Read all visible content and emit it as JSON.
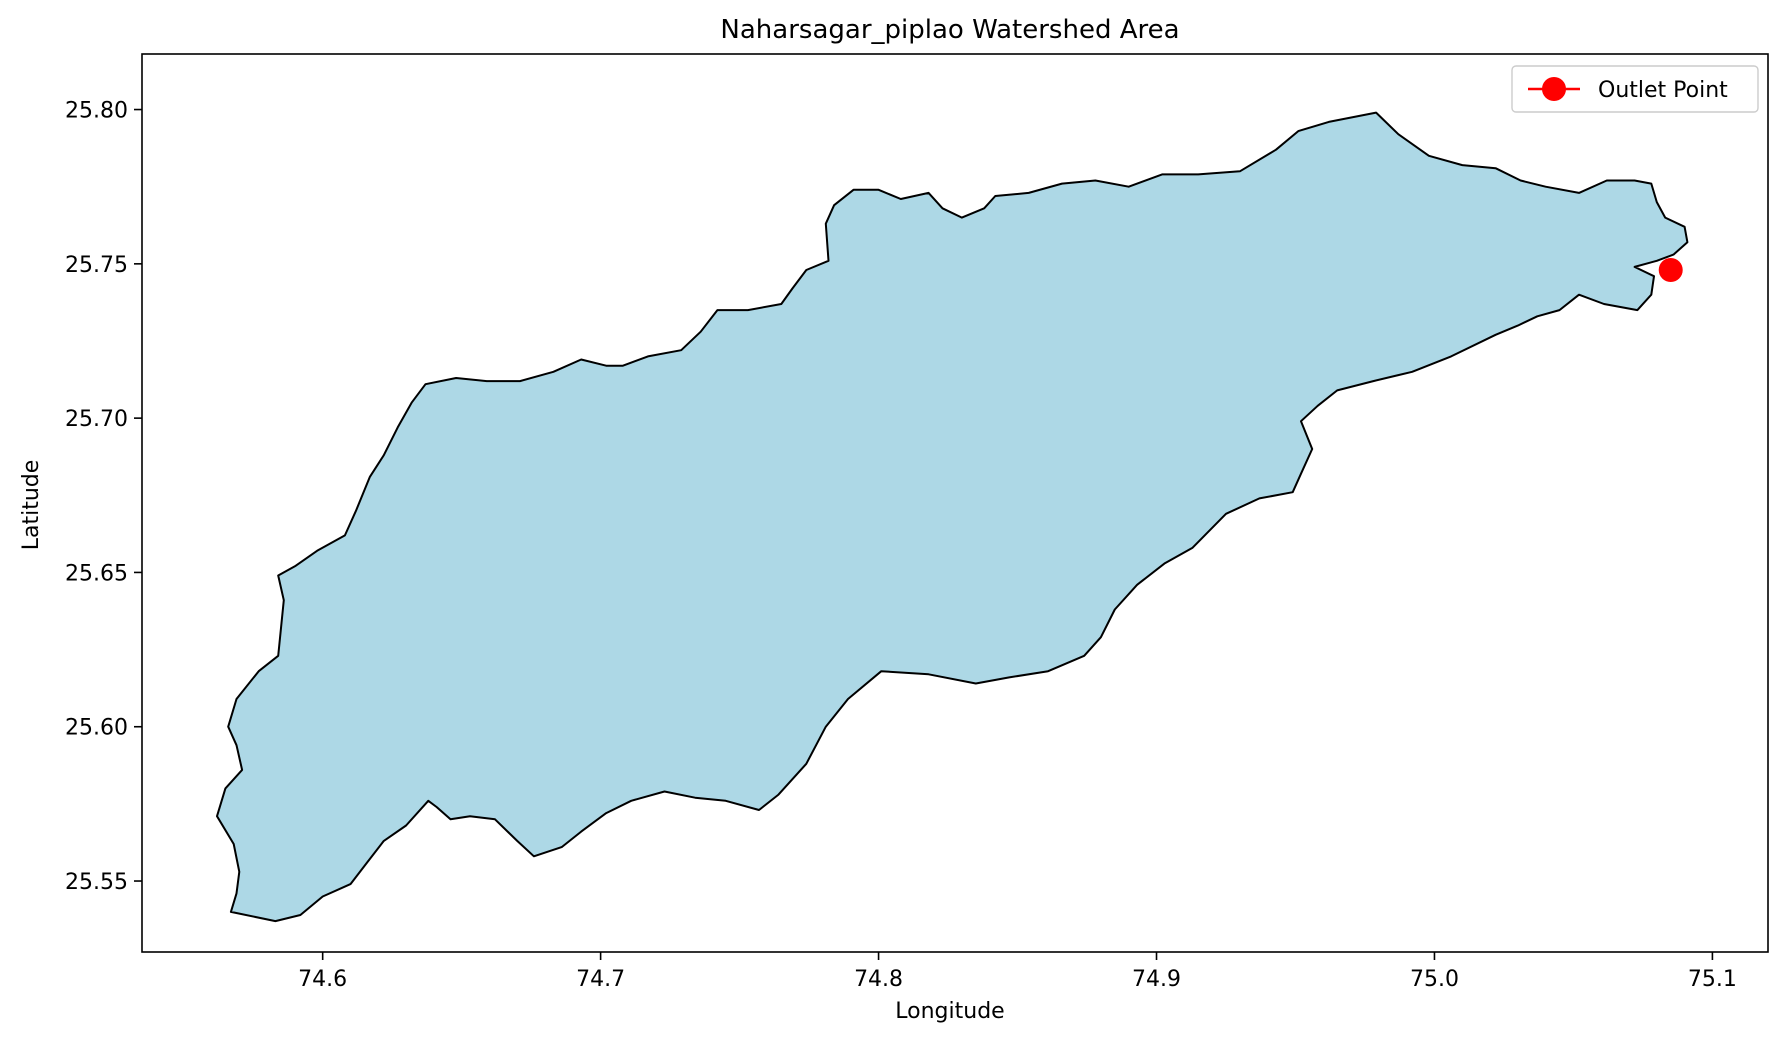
{
  "chart_data": {
    "type": "map",
    "title": "Naharsagar_piplao Watershed Area",
    "xlabel": "Longitude",
    "ylabel": "Latitude",
    "xlim": [
      74.535,
      75.12
    ],
    "ylim": [
      25.527,
      25.818
    ],
    "xticks": [
      "74.6",
      "74.7",
      "74.8",
      "74.9",
      "75.0",
      "75.1"
    ],
    "xtick_values": [
      74.6,
      74.7,
      74.8,
      74.9,
      75.0,
      75.1
    ],
    "yticks": [
      "25.55",
      "25.60",
      "25.65",
      "25.70",
      "25.75",
      "25.80"
    ],
    "ytick_values": [
      25.55,
      25.6,
      25.65,
      25.7,
      25.75,
      25.8
    ],
    "grid": false,
    "legend_position": "top-right",
    "legend": [
      {
        "label": "Outlet Point",
        "color": "#ff0000",
        "marker": "circle-line"
      }
    ],
    "watershed": {
      "fill_color": "#add8e6",
      "edge_color": "#000000",
      "boundary": [
        [
          74.567,
          25.54
        ],
        [
          74.583,
          25.537
        ],
        [
          74.592,
          25.539
        ],
        [
          74.6,
          25.545
        ],
        [
          74.61,
          25.549
        ],
        [
          74.616,
          25.556
        ],
        [
          74.622,
          25.563
        ],
        [
          74.63,
          25.568
        ],
        [
          74.638,
          25.576
        ],
        [
          74.641,
          25.574
        ],
        [
          74.646,
          25.57
        ],
        [
          74.653,
          25.571
        ],
        [
          74.662,
          25.57
        ],
        [
          74.67,
          25.563
        ],
        [
          74.676,
          25.558
        ],
        [
          74.686,
          25.561
        ],
        [
          74.693,
          25.566
        ],
        [
          74.702,
          25.572
        ],
        [
          74.711,
          25.576
        ],
        [
          74.723,
          25.579
        ],
        [
          74.734,
          25.577
        ],
        [
          74.745,
          25.576
        ],
        [
          74.757,
          25.573
        ],
        [
          74.764,
          25.578
        ],
        [
          74.774,
          25.588
        ],
        [
          74.781,
          25.6
        ],
        [
          74.789,
          25.609
        ],
        [
          74.801,
          25.618
        ],
        [
          74.818,
          25.617
        ],
        [
          74.835,
          25.614
        ],
        [
          74.847,
          25.616
        ],
        [
          74.861,
          25.618
        ],
        [
          74.874,
          25.623
        ],
        [
          74.88,
          25.629
        ],
        [
          74.885,
          25.638
        ],
        [
          74.893,
          25.646
        ],
        [
          74.903,
          25.653
        ],
        [
          74.913,
          25.658
        ],
        [
          74.925,
          25.669
        ],
        [
          74.937,
          25.674
        ],
        [
          74.949,
          25.676
        ],
        [
          74.952,
          25.682
        ],
        [
          74.956,
          25.69
        ],
        [
          74.952,
          25.699
        ],
        [
          74.958,
          25.704
        ],
        [
          74.965,
          25.709
        ],
        [
          74.978,
          25.712
        ],
        [
          74.992,
          25.715
        ],
        [
          75.006,
          25.72
        ],
        [
          75.022,
          25.727
        ],
        [
          75.03,
          25.73
        ],
        [
          75.037,
          25.733
        ],
        [
          75.045,
          25.735
        ],
        [
          75.052,
          25.74
        ],
        [
          75.061,
          25.737
        ],
        [
          75.073,
          25.735
        ],
        [
          75.078,
          25.74
        ],
        [
          75.079,
          25.746
        ],
        [
          75.072,
          25.749
        ],
        [
          75.08,
          25.751
        ],
        [
          75.086,
          25.753
        ],
        [
          75.091,
          25.757
        ],
        [
          75.09,
          25.762
        ],
        [
          75.083,
          25.765
        ],
        [
          75.08,
          25.77
        ],
        [
          75.078,
          25.776
        ],
        [
          75.072,
          25.777
        ],
        [
          75.062,
          25.777
        ],
        [
          75.052,
          25.773
        ],
        [
          75.04,
          25.775
        ],
        [
          75.031,
          25.777
        ],
        [
          75.022,
          25.781
        ],
        [
          75.01,
          25.782
        ],
        [
          74.998,
          25.785
        ],
        [
          74.987,
          25.792
        ],
        [
          74.979,
          25.799
        ],
        [
          74.962,
          25.796
        ],
        [
          74.951,
          25.793
        ],
        [
          74.943,
          25.787
        ],
        [
          74.93,
          25.78
        ],
        [
          74.915,
          25.779
        ],
        [
          74.902,
          25.779
        ],
        [
          74.89,
          25.775
        ],
        [
          74.878,
          25.777
        ],
        [
          74.866,
          25.776
        ],
        [
          74.854,
          25.773
        ],
        [
          74.842,
          25.772
        ],
        [
          74.838,
          25.768
        ],
        [
          74.83,
          25.765
        ],
        [
          74.823,
          25.768
        ],
        [
          74.818,
          25.773
        ],
        [
          74.808,
          25.771
        ],
        [
          74.8,
          25.774
        ],
        [
          74.791,
          25.774
        ],
        [
          74.784,
          25.769
        ],
        [
          74.781,
          25.763
        ],
        [
          74.782,
          25.751
        ],
        [
          74.774,
          25.748
        ],
        [
          74.769,
          25.742
        ],
        [
          74.765,
          25.737
        ],
        [
          74.753,
          25.735
        ],
        [
          74.742,
          25.735
        ],
        [
          74.736,
          25.728
        ],
        [
          74.729,
          25.722
        ],
        [
          74.717,
          25.72
        ],
        [
          74.708,
          25.717
        ],
        [
          74.702,
          25.717
        ],
        [
          74.693,
          25.719
        ],
        [
          74.683,
          25.715
        ],
        [
          74.671,
          25.712
        ],
        [
          74.659,
          25.712
        ],
        [
          74.648,
          25.713
        ],
        [
          74.637,
          25.711
        ],
        [
          74.632,
          25.705
        ],
        [
          74.627,
          25.697
        ],
        [
          74.622,
          25.688
        ],
        [
          74.617,
          25.681
        ],
        [
          74.612,
          25.67
        ],
        [
          74.608,
          25.662
        ],
        [
          74.598,
          25.657
        ],
        [
          74.59,
          25.652
        ],
        [
          74.584,
          25.649
        ],
        [
          74.586,
          25.641
        ],
        [
          74.585,
          25.632
        ],
        [
          74.584,
          25.623
        ],
        [
          74.577,
          25.618
        ],
        [
          74.569,
          25.609
        ],
        [
          74.566,
          25.6
        ],
        [
          74.569,
          25.594
        ],
        [
          74.571,
          25.586
        ],
        [
          74.565,
          25.58
        ],
        [
          74.562,
          25.571
        ],
        [
          74.568,
          25.562
        ],
        [
          74.57,
          25.553
        ],
        [
          74.569,
          25.546
        ],
        [
          74.567,
          25.54
        ]
      ]
    },
    "outlet_point": {
      "lon": 75.085,
      "lat": 25.748,
      "color": "#ff0000"
    }
  }
}
